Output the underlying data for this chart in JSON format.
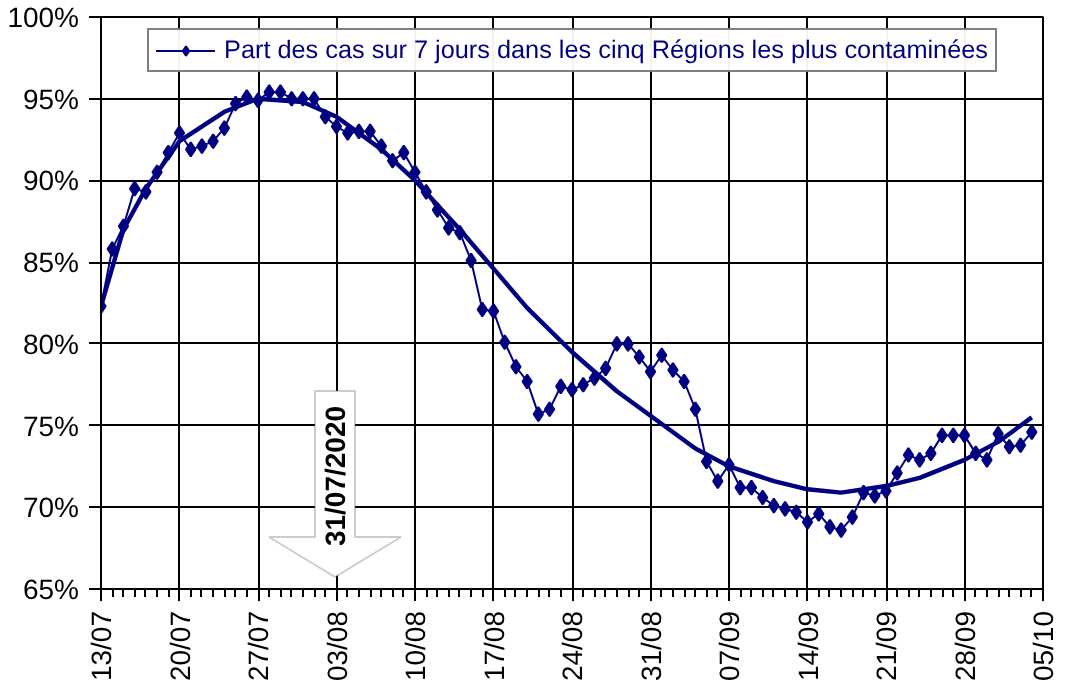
{
  "chart_data": {
    "type": "line",
    "marker": "diamond",
    "line_style": "solid",
    "grid": true,
    "legend": "top",
    "xlim": [
      "2020-07-13",
      "2020-10-05"
    ],
    "xticks": [
      {
        "value": "2020-07-13",
        "label": "13/07"
      },
      {
        "value": "2020-07-20",
        "label": "20/07"
      },
      {
        "value": "2020-07-27",
        "label": "27/07"
      },
      {
        "value": "2020-08-03",
        "label": "03/08"
      },
      {
        "value": "2020-08-10",
        "label": "10/08"
      },
      {
        "value": "2020-08-17",
        "label": "17/08"
      },
      {
        "value": "2020-08-24",
        "label": "24/08"
      },
      {
        "value": "2020-08-31",
        "label": "31/08"
      },
      {
        "value": "2020-09-07",
        "label": "07/09"
      },
      {
        "value": "2020-09-14",
        "label": "14/09"
      },
      {
        "value": "2020-09-21",
        "label": "21/09"
      },
      {
        "value": "2020-09-28",
        "label": "28/09"
      },
      {
        "value": "2020-10-05",
        "label": "05/10"
      }
    ],
    "ylim": [
      65,
      100
    ],
    "yticks": [
      {
        "value": 65,
        "label": "65%"
      },
      {
        "value": 70,
        "label": "70%"
      },
      {
        "value": 75,
        "label": "75%"
      },
      {
        "value": 80,
        "label": "80%"
      },
      {
        "value": 85,
        "label": "85%"
      },
      {
        "value": 90,
        "label": "90%"
      },
      {
        "value": 95,
        "label": "95%"
      },
      {
        "value": 100,
        "label": "100%"
      }
    ],
    "annotations": [
      "31/07/2020"
    ],
    "series": [
      {
        "name": "Part des cas sur 7 jours dans les cinq Régions les plus contaminées",
        "color": "#000080",
        "x": [
          "2020-07-13",
          "2020-07-14",
          "2020-07-15",
          "2020-07-16",
          "2020-07-17",
          "2020-07-18",
          "2020-07-19",
          "2020-07-20",
          "2020-07-21",
          "2020-07-22",
          "2020-07-23",
          "2020-07-24",
          "2020-07-25",
          "2020-07-26",
          "2020-07-27",
          "2020-07-28",
          "2020-07-29",
          "2020-07-30",
          "2020-07-31",
          "2020-08-01",
          "2020-08-02",
          "2020-08-03",
          "2020-08-04",
          "2020-08-05",
          "2020-08-06",
          "2020-08-07",
          "2020-08-08",
          "2020-08-09",
          "2020-08-10",
          "2020-08-11",
          "2020-08-12",
          "2020-08-13",
          "2020-08-14",
          "2020-08-15",
          "2020-08-16",
          "2020-08-17",
          "2020-08-18",
          "2020-08-19",
          "2020-08-20",
          "2020-08-21",
          "2020-08-22",
          "2020-08-23",
          "2020-08-24",
          "2020-08-25",
          "2020-08-26",
          "2020-08-27",
          "2020-08-28",
          "2020-08-29",
          "2020-08-30",
          "2020-08-31",
          "2020-09-01",
          "2020-09-02",
          "2020-09-03",
          "2020-09-04",
          "2020-09-05",
          "2020-09-06",
          "2020-09-07",
          "2020-09-08",
          "2020-09-09",
          "2020-09-10",
          "2020-09-11",
          "2020-09-12",
          "2020-09-13",
          "2020-09-14",
          "2020-09-15",
          "2020-09-16",
          "2020-09-17",
          "2020-09-18",
          "2020-09-19",
          "2020-09-20",
          "2020-09-21",
          "2020-09-22",
          "2020-09-23",
          "2020-09-24",
          "2020-09-25",
          "2020-09-26",
          "2020-09-27",
          "2020-09-28",
          "2020-09-29",
          "2020-09-30",
          "2020-10-01",
          "2020-10-02",
          "2020-10-03",
          "2020-10-04"
        ],
        "values": [
          82.3,
          85.8,
          87.2,
          89.5,
          89.3,
          90.5,
          91.7,
          92.9,
          91.9,
          92.1,
          92.4,
          93.2,
          94.7,
          95.1,
          94.9,
          95.4,
          95.4,
          95.0,
          95.0,
          95.0,
          93.9,
          93.3,
          92.9,
          93.0,
          93.0,
          92.1,
          91.2,
          91.7,
          90.5,
          89.3,
          88.2,
          87.1,
          86.8,
          85.1,
          82.1,
          82.0,
          80.1,
          78.6,
          77.7,
          75.7,
          76.0,
          77.4,
          77.2,
          77.5,
          77.9,
          78.5,
          80.0,
          80.0,
          79.2,
          78.3,
          79.3,
          78.4,
          77.7,
          76.0,
          72.8,
          71.6,
          72.6,
          71.2,
          71.2,
          70.6,
          70.1,
          69.9,
          69.7,
          69.1,
          69.6,
          68.8,
          68.6,
          69.4,
          70.9,
          70.7,
          71.0,
          72.1,
          73.2,
          72.9,
          73.3,
          74.4,
          74.4,
          74.4,
          73.3,
          72.9,
          74.5,
          73.7,
          73.8,
          74.6
        ]
      },
      {
        "color": "#000080",
        "marker": "none",
        "x": [
          "2020-07-13",
          "2020-07-15",
          "2020-07-17",
          "2020-07-20",
          "2020-07-24",
          "2020-07-27",
          "2020-07-31",
          "2020-08-03",
          "2020-08-07",
          "2020-08-10",
          "2020-08-14",
          "2020-08-17",
          "2020-08-20",
          "2020-08-24",
          "2020-08-28",
          "2020-08-31",
          "2020-09-04",
          "2020-09-07",
          "2020-09-11",
          "2020-09-14",
          "2020-09-17",
          "2020-09-21",
          "2020-09-24",
          "2020-09-28",
          "2020-10-01",
          "2020-10-04"
        ],
        "values": [
          82.3,
          87.0,
          89.5,
          92.4,
          94.2,
          95.0,
          94.8,
          93.9,
          91.9,
          90.0,
          87.0,
          84.6,
          82.2,
          79.5,
          77.1,
          75.6,
          73.6,
          72.5,
          71.6,
          71.1,
          70.9,
          71.3,
          71.8,
          72.9,
          74.0,
          75.5
        ]
      }
    ]
  }
}
